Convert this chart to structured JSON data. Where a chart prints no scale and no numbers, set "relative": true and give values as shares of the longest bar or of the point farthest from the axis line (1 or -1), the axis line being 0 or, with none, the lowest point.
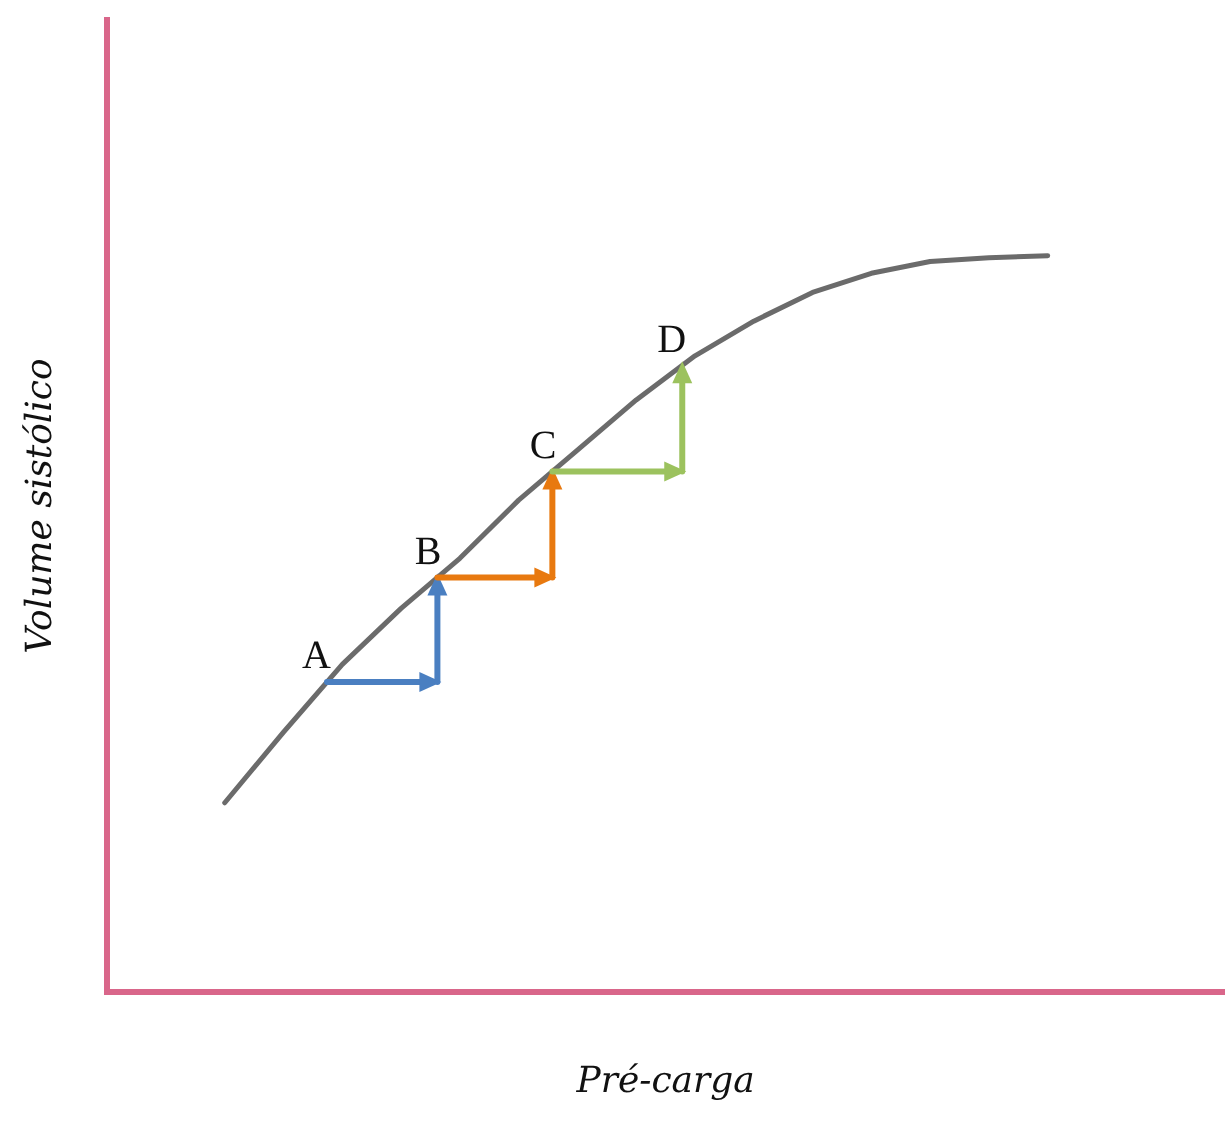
{
  "chart_data": {
    "type": "line",
    "relative": true,
    "xlabel": "Pré-carga",
    "ylabel": "Volume sistólico",
    "marker": "none",
    "line_style": "solid",
    "categories": [
      null,
      null,
      null,
      null,
      null,
      null,
      null,
      null,
      null,
      null,
      null,
      null,
      null,
      null,
      null,
      null,
      null,
      null,
      null,
      null
    ],
    "series": [
      {
        "color": "#6b6b6b",
        "values": [
          null,
          null,
          0.257,
          0.353,
          0.445,
          0.521,
          0.589,
          0.668,
          0.736,
          0.804,
          0.864,
          0.911,
          0.95,
          0.976,
          0.992,
          0.997,
          1,
          null,
          null,
          null
        ]
      }
    ],
    "annotations": [
      {
        "text": "A",
        "y": 0.421
      },
      {
        "text": "B",
        "y": 0.563
      },
      {
        "text": "C",
        "y": 0.707
      },
      {
        "text": "D",
        "y": 0.851
      }
    ]
  }
}
